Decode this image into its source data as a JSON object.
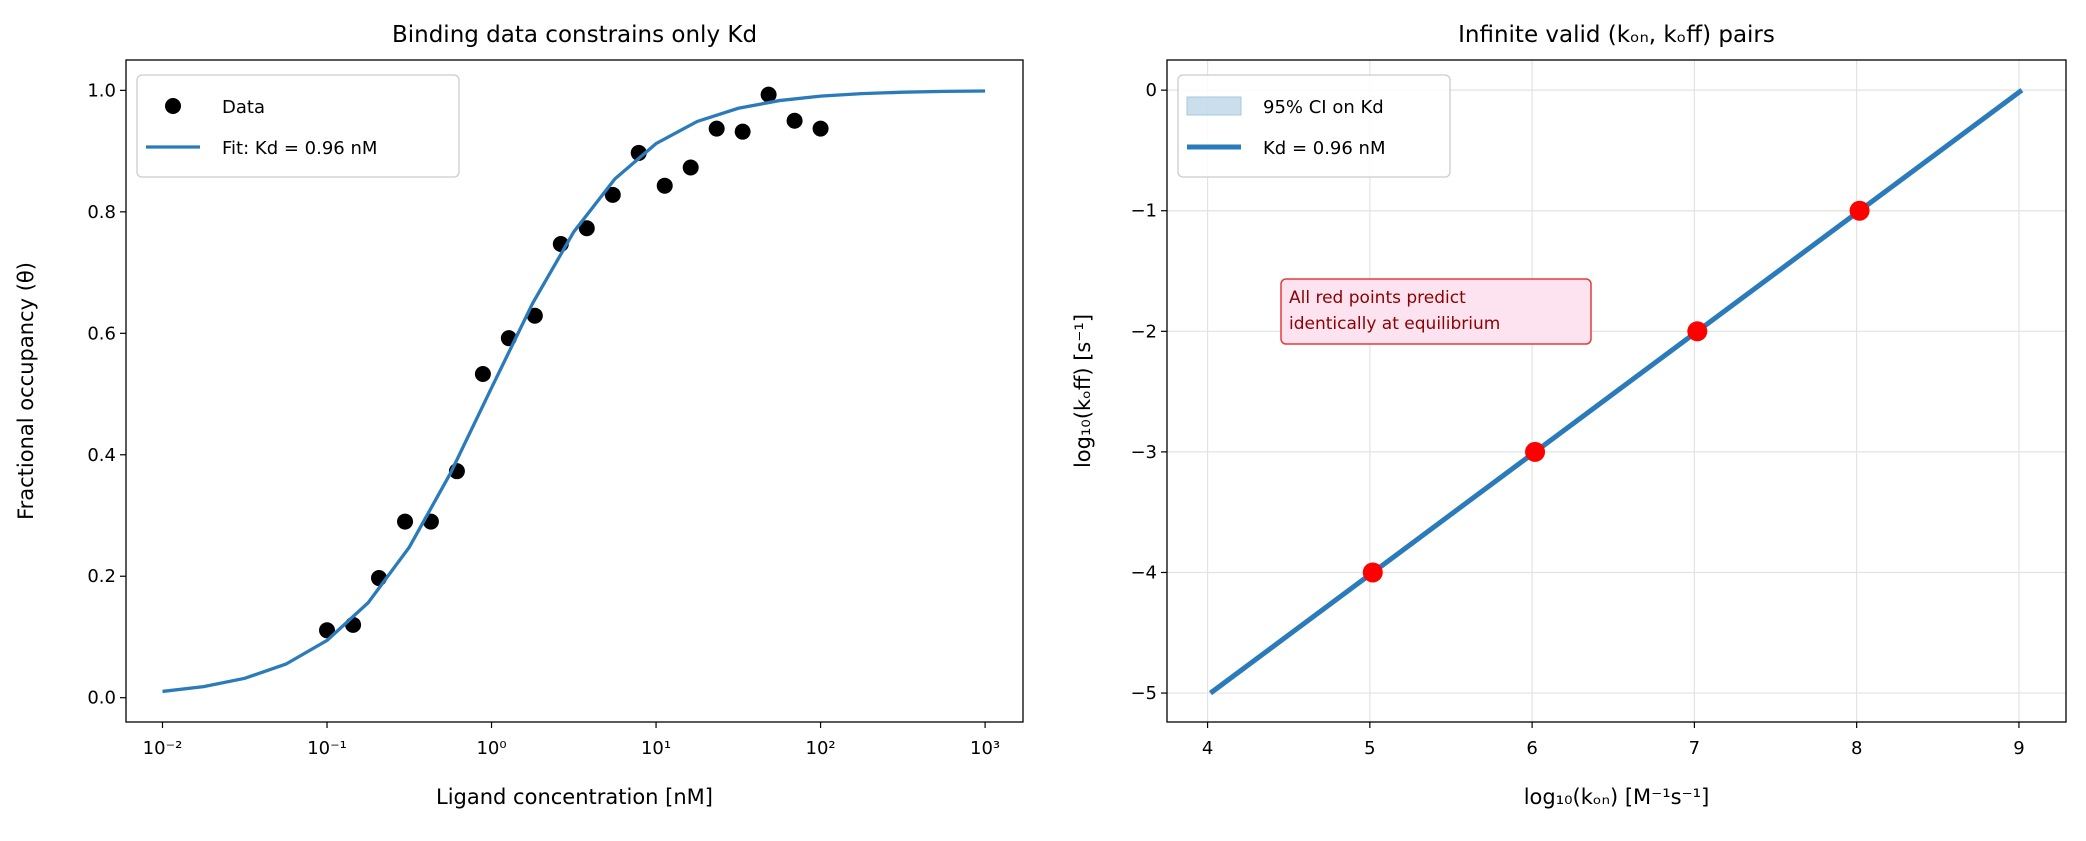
{
  "chart_data": [
    {
      "type": "line",
      "title": "Binding data constrains only Kd",
      "xlabel": "Ligand concentration [nM]",
      "ylabel": "Fractional occupancy (θ)",
      "xscale": "log",
      "xlim": [
        0.006,
        1700
      ],
      "ylim": [
        -0.04,
        1.05
      ],
      "xticks": [
        {
          "value": 0.01,
          "label": "10⁻²"
        },
        {
          "value": 0.1,
          "label": "10⁻¹"
        },
        {
          "value": 1,
          "label": "10⁰"
        },
        {
          "value": 10,
          "label": "10¹"
        },
        {
          "value": 100,
          "label": "10²"
        },
        {
          "value": 1000,
          "label": "10³"
        }
      ],
      "yticks": [
        {
          "value": 0,
          "label": "0.0"
        },
        {
          "value": 0.2,
          "label": "0.2"
        },
        {
          "value": 0.4,
          "label": "0.4"
        },
        {
          "value": 0.6,
          "label": "0.6"
        },
        {
          "value": 0.8,
          "label": "0.8"
        },
        {
          "value": 1,
          "label": "1.0"
        }
      ],
      "grid": false,
      "legend": "upper left",
      "series": [
        {
          "name": "Data",
          "mode": "markers",
          "color": "#000000",
          "markersize": 8,
          "x": [
            0.1,
            0.144,
            0.207,
            0.298,
            0.428,
            0.616,
            0.886,
            1.274,
            1.833,
            2.637,
            3.793,
            5.456,
            7.848,
            11.29,
            16.24,
            23.36,
            33.6,
            48.33,
            69.52,
            100
          ],
          "values": [
            0.111,
            0.12,
            0.197,
            0.29,
            0.29,
            0.373,
            0.533,
            0.592,
            0.629,
            0.747,
            0.773,
            0.828,
            0.897,
            0.843,
            0.873,
            0.937,
            0.932,
            0.993,
            0.95,
            0.937
          ]
        },
        {
          "name": "Fit: Kd = 0.96 nM",
          "mode": "line",
          "color": "#2b7bba",
          "linewidth": 3.3,
          "x": [
            0.01,
            0.01778,
            0.03162,
            0.05623,
            0.1,
            0.1778,
            0.3162,
            0.5623,
            1,
            1.778,
            3.162,
            5.623,
            10,
            17.78,
            31.62,
            56.23,
            100,
            177.8,
            316.2,
            562.3,
            1000
          ],
          "values": [
            0.0103,
            0.0182,
            0.0319,
            0.0553,
            0.0943,
            0.1563,
            0.2478,
            0.3694,
            0.5102,
            0.6494,
            0.7671,
            0.8542,
            0.9124,
            0.9488,
            0.9705,
            0.9832,
            0.9905,
            0.9946,
            0.997,
            0.9983,
            0.999
          ]
        }
      ]
    },
    {
      "type": "line",
      "title": "Infinite valid (kₒₙ, kₒff) pairs",
      "xlabel": "log₁₀(kₒₙ) [M⁻¹s⁻¹]",
      "ylabel": "log₁₀(kₒff) [s⁻¹]",
      "xscale": "linear",
      "xlim": [
        3.75,
        9.29
      ],
      "ylim": [
        -5.24,
        0.25
      ],
      "xticks": [
        4,
        5,
        6,
        7,
        8,
        9
      ],
      "yticks": [
        {
          "value": -5,
          "label": "−5"
        },
        {
          "value": -4,
          "label": "−4"
        },
        {
          "value": -3,
          "label": "−3"
        },
        {
          "value": -2,
          "label": "−2"
        },
        {
          "value": -1,
          "label": "−1"
        },
        0
      ],
      "grid": true,
      "legend": "upper left",
      "annotation": [
        "All red points predict",
        "identically at equilibrium"
      ],
      "series": [
        {
          "name": "95% CI on Kd",
          "mode": "band",
          "color": "#a6c8e0"
        },
        {
          "name": "Kd = 0.96 nM",
          "mode": "line",
          "color": "#2b7bba",
          "linewidth": 5,
          "x": [
            4.018,
            9.018
          ],
          "values": [
            -5,
            0
          ]
        },
        {
          "mode": "markers",
          "color": "#ff0000",
          "markersize": 10,
          "x": [
            5.018,
            6.018,
            7.018,
            8.018
          ],
          "values": [
            -4,
            -3,
            -2,
            -1
          ]
        }
      ]
    }
  ]
}
